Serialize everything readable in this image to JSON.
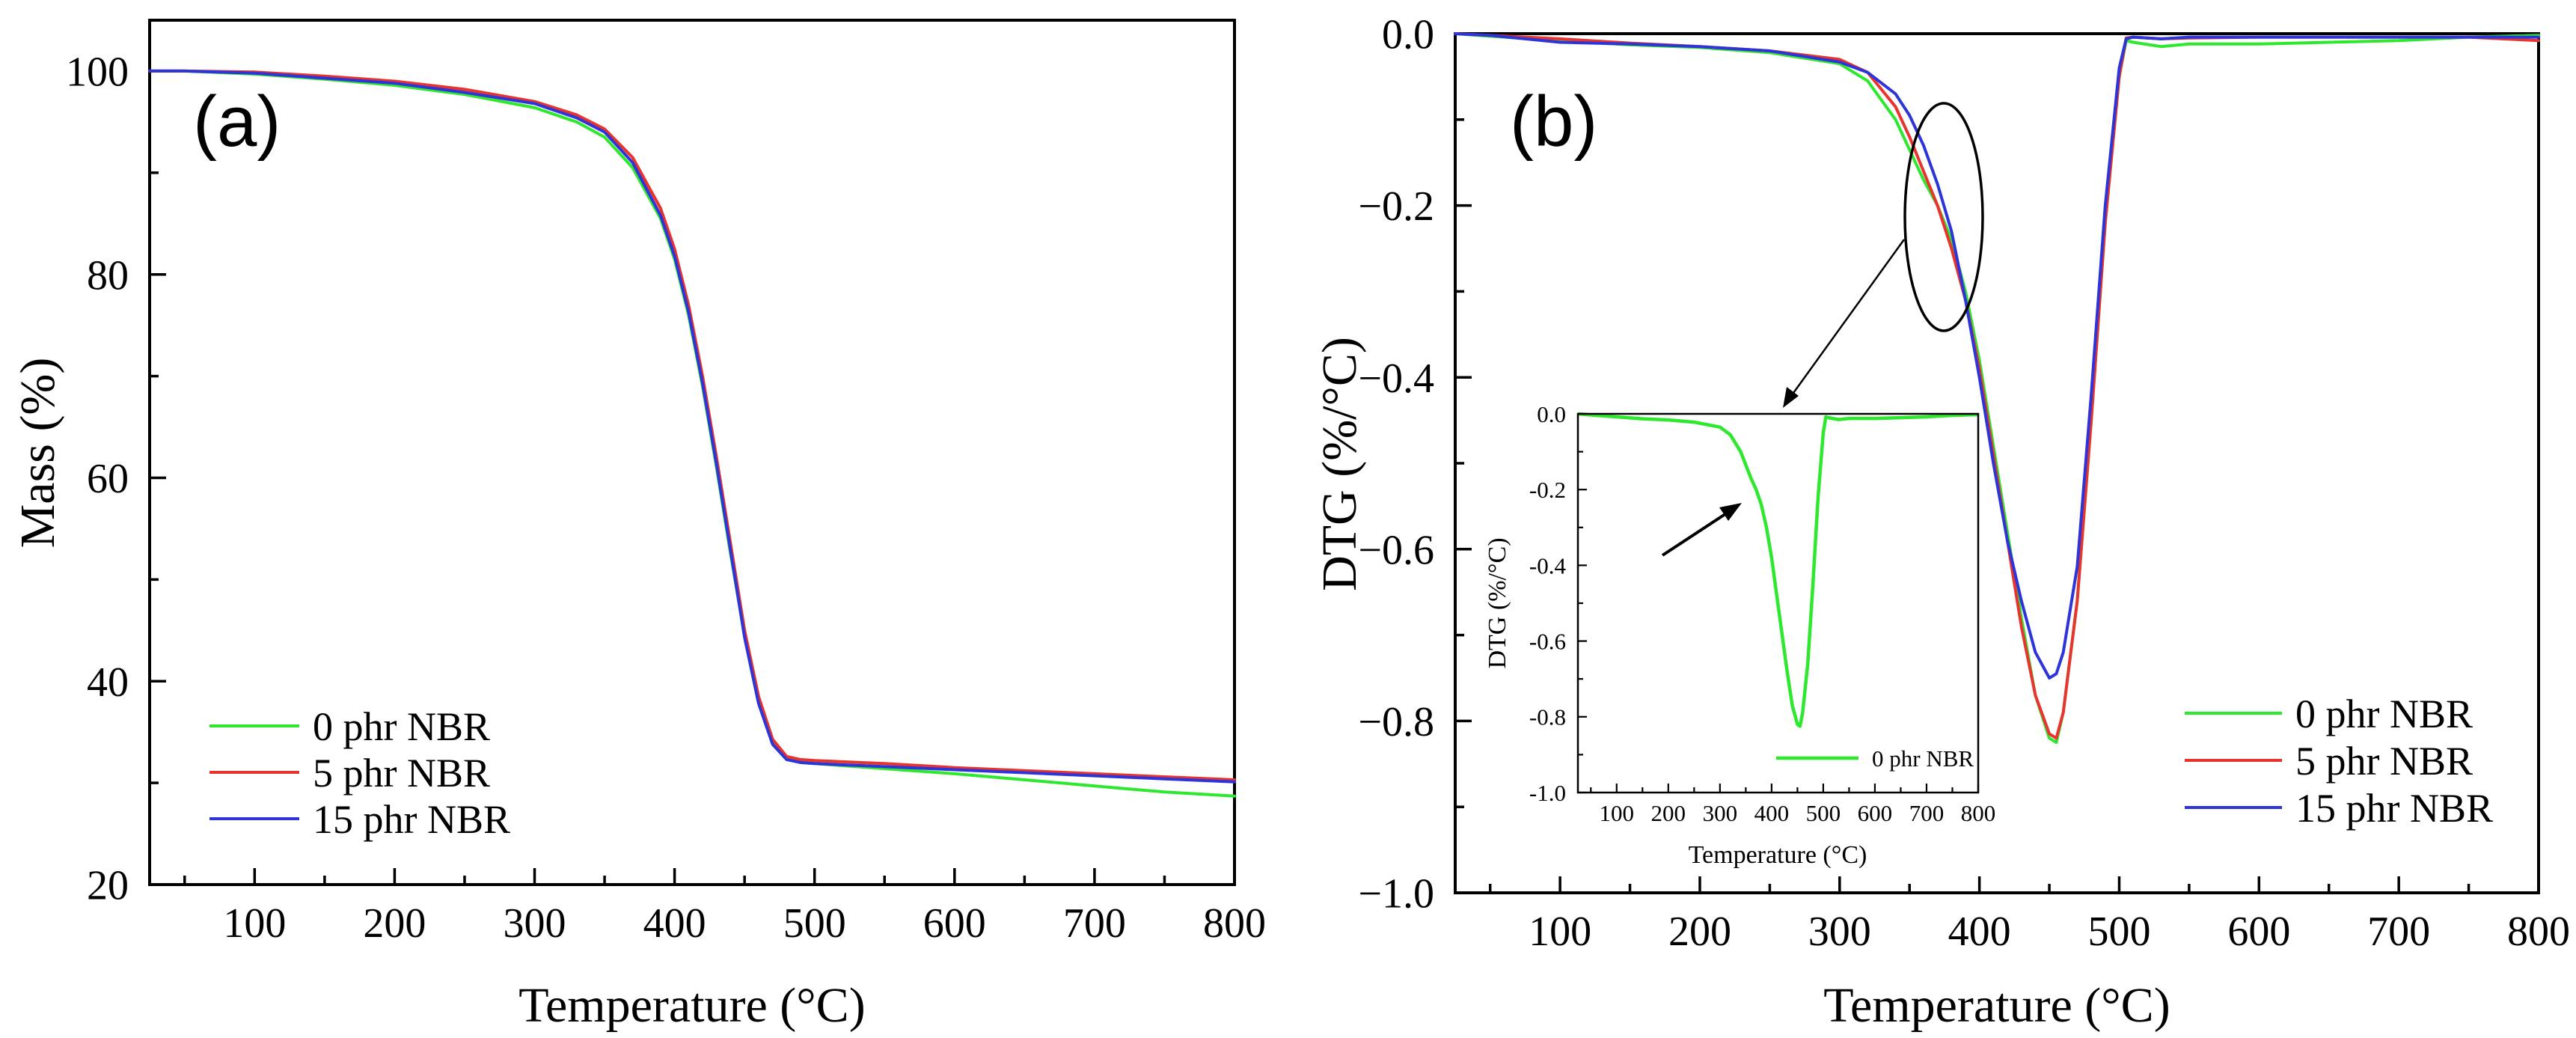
{
  "colors": {
    "series_0": "#2ee82e",
    "series_5": "#e8332e",
    "series_15": "#2e35d8",
    "axis": "#000000"
  },
  "chart_data": [
    {
      "panel": "(a)",
      "type": "line",
      "title": "",
      "xlabel": "Temperature (°C)",
      "ylabel": "Mass (%)",
      "xlim": [
        25,
        800
      ],
      "ylim": [
        20,
        105
      ],
      "xticks": [
        100,
        200,
        300,
        400,
        500,
        600,
        700,
        800
      ],
      "yticks": [
        20,
        40,
        60,
        80,
        100
      ],
      "legend_position": "bottom-left",
      "series": [
        {
          "name": "0 phr NBR",
          "color_key": "series_0",
          "x": [
            25,
            50,
            100,
            150,
            200,
            250,
            300,
            330,
            350,
            370,
            390,
            400,
            410,
            420,
            430,
            440,
            450,
            460,
            470,
            480,
            490,
            500,
            550,
            600,
            650,
            700,
            750,
            800
          ],
          "y": [
            100,
            100,
            99.7,
            99.2,
            98.6,
            97.7,
            96.4,
            95.0,
            93.5,
            90.5,
            85.5,
            81.5,
            76.0,
            69.0,
            61.0,
            52.5,
            44.5,
            38.0,
            34.0,
            32.4,
            32.0,
            31.9,
            31.4,
            30.9,
            30.3,
            29.7,
            29.1,
            28.7
          ]
        },
        {
          "name": "5 phr NBR",
          "color_key": "series_5",
          "x": [
            25,
            50,
            100,
            150,
            200,
            250,
            300,
            330,
            350,
            370,
            390,
            400,
            410,
            420,
            430,
            440,
            450,
            460,
            470,
            480,
            490,
            500,
            550,
            600,
            650,
            700,
            750,
            800
          ],
          "y": [
            100,
            100,
            99.9,
            99.5,
            99.0,
            98.2,
            97.0,
            95.7,
            94.3,
            91.5,
            86.5,
            82.5,
            77.0,
            70.0,
            62.0,
            53.5,
            45.0,
            38.5,
            34.3,
            32.6,
            32.3,
            32.2,
            31.9,
            31.5,
            31.2,
            30.9,
            30.6,
            30.3
          ]
        },
        {
          "name": "15 phr NBR",
          "color_key": "series_15",
          "x": [
            25,
            50,
            100,
            150,
            200,
            250,
            300,
            330,
            350,
            370,
            390,
            400,
            410,
            420,
            430,
            440,
            450,
            460,
            470,
            480,
            490,
            500,
            550,
            600,
            650,
            700,
            750,
            800
          ],
          "y": [
            100,
            100,
            99.8,
            99.3,
            98.8,
            97.9,
            96.8,
            95.4,
            94.0,
            91.0,
            85.8,
            81.8,
            76.3,
            69.3,
            61.3,
            52.8,
            44.3,
            37.8,
            33.8,
            32.3,
            32.0,
            31.9,
            31.6,
            31.3,
            31.0,
            30.7,
            30.4,
            30.1
          ]
        }
      ]
    },
    {
      "panel": "(b)",
      "type": "line",
      "title": "",
      "xlabel": "Temperature (°C)",
      "ylabel": "DTG (%/°C)",
      "xlim": [
        25,
        800
      ],
      "ylim": [
        -1.0,
        0.0
      ],
      "xticks": [
        100,
        200,
        300,
        400,
        500,
        600,
        700,
        800
      ],
      "yticks": [
        0.0,
        -0.2,
        -0.4,
        -0.6,
        -0.8,
        -1.0
      ],
      "ytick_labels": [
        "0.0",
        "−0.2",
        "−0.4",
        "−0.6",
        "−0.8",
        "−1.0"
      ],
      "legend_position": "bottom-right",
      "series": [
        {
          "name": "0 phr NBR",
          "color_key": "series_0",
          "x": [
            25,
            50,
            100,
            150,
            200,
            250,
            300,
            320,
            340,
            350,
            360,
            370,
            380,
            390,
            400,
            410,
            420,
            430,
            440,
            450,
            455,
            460,
            470,
            480,
            490,
            500,
            505,
            510,
            530,
            550,
            600,
            650,
            700,
            750,
            800
          ],
          "y": [
            0.0,
            -0.003,
            -0.008,
            -0.013,
            -0.016,
            -0.022,
            -0.035,
            -0.055,
            -0.1,
            -0.135,
            -0.17,
            -0.2,
            -0.24,
            -0.3,
            -0.38,
            -0.48,
            -0.58,
            -0.68,
            -0.77,
            -0.82,
            -0.825,
            -0.79,
            -0.66,
            -0.45,
            -0.22,
            -0.05,
            -0.008,
            -0.01,
            -0.015,
            -0.012,
            -0.012,
            -0.01,
            -0.008,
            -0.004,
            -0.002
          ]
        },
        {
          "name": "5 phr NBR",
          "color_key": "series_5",
          "x": [
            25,
            50,
            100,
            150,
            200,
            250,
            300,
            320,
            340,
            350,
            360,
            370,
            380,
            390,
            400,
            410,
            420,
            430,
            440,
            450,
            455,
            460,
            470,
            480,
            490,
            500,
            505,
            510,
            530,
            550,
            600,
            650,
            700,
            750,
            800
          ],
          "y": [
            0.0,
            -0.002,
            -0.006,
            -0.011,
            -0.015,
            -0.02,
            -0.03,
            -0.045,
            -0.085,
            -0.12,
            -0.16,
            -0.2,
            -0.25,
            -0.31,
            -0.39,
            -0.49,
            -0.59,
            -0.69,
            -0.77,
            -0.815,
            -0.82,
            -0.79,
            -0.66,
            -0.45,
            -0.22,
            -0.05,
            -0.005,
            -0.004,
            -0.006,
            -0.005,
            -0.004,
            -0.004,
            -0.004,
            -0.004,
            -0.008
          ]
        },
        {
          "name": "15 phr NBR",
          "color_key": "series_15",
          "x": [
            25,
            50,
            100,
            150,
            200,
            250,
            300,
            320,
            340,
            350,
            360,
            370,
            380,
            390,
            400,
            410,
            420,
            430,
            440,
            450,
            455,
            460,
            470,
            480,
            490,
            500,
            505,
            510,
            530,
            550,
            600,
            650,
            700,
            750,
            800
          ],
          "y": [
            0.0,
            -0.002,
            -0.01,
            -0.012,
            -0.015,
            -0.02,
            -0.033,
            -0.045,
            -0.07,
            -0.095,
            -0.13,
            -0.175,
            -0.23,
            -0.31,
            -0.4,
            -0.5,
            -0.59,
            -0.66,
            -0.72,
            -0.75,
            -0.745,
            -0.72,
            -0.62,
            -0.42,
            -0.2,
            -0.04,
            -0.006,
            -0.004,
            -0.006,
            -0.004,
            -0.004,
            -0.004,
            -0.004,
            -0.004,
            -0.004
          ]
        }
      ]
    },
    {
      "panel": "(b) inset",
      "type": "line",
      "title": "",
      "xlabel": "Temperature (°C)",
      "ylabel": "DTG (%/°C)",
      "xlim": [
        25,
        800
      ],
      "ylim": [
        -1.0,
        0.0
      ],
      "xticks": [
        100,
        200,
        300,
        400,
        500,
        600,
        700,
        800
      ],
      "yticks": [
        0.0,
        -0.2,
        -0.4,
        -0.6,
        -0.8,
        -1.0
      ],
      "ytick_labels": [
        "0.0",
        "-0.2",
        "-0.4",
        "-0.6",
        "-0.8",
        "-1.0"
      ],
      "legend_position": "bottom-right",
      "series": [
        {
          "name": "0 phr NBR",
          "color_key": "series_0",
          "x": [
            25,
            50,
            100,
            150,
            200,
            250,
            300,
            320,
            340,
            350,
            360,
            370,
            380,
            390,
            400,
            410,
            420,
            430,
            440,
            450,
            455,
            460,
            470,
            480,
            490,
            500,
            505,
            510,
            530,
            550,
            600,
            650,
            700,
            750,
            800
          ],
          "y": [
            0.0,
            -0.003,
            -0.008,
            -0.013,
            -0.016,
            -0.022,
            -0.035,
            -0.055,
            -0.1,
            -0.135,
            -0.17,
            -0.2,
            -0.24,
            -0.3,
            -0.38,
            -0.48,
            -0.58,
            -0.68,
            -0.77,
            -0.82,
            -0.825,
            -0.79,
            -0.66,
            -0.45,
            -0.22,
            -0.05,
            -0.008,
            -0.01,
            -0.015,
            -0.012,
            -0.012,
            -0.01,
            -0.008,
            -0.004,
            -0.002
          ]
        }
      ]
    }
  ]
}
